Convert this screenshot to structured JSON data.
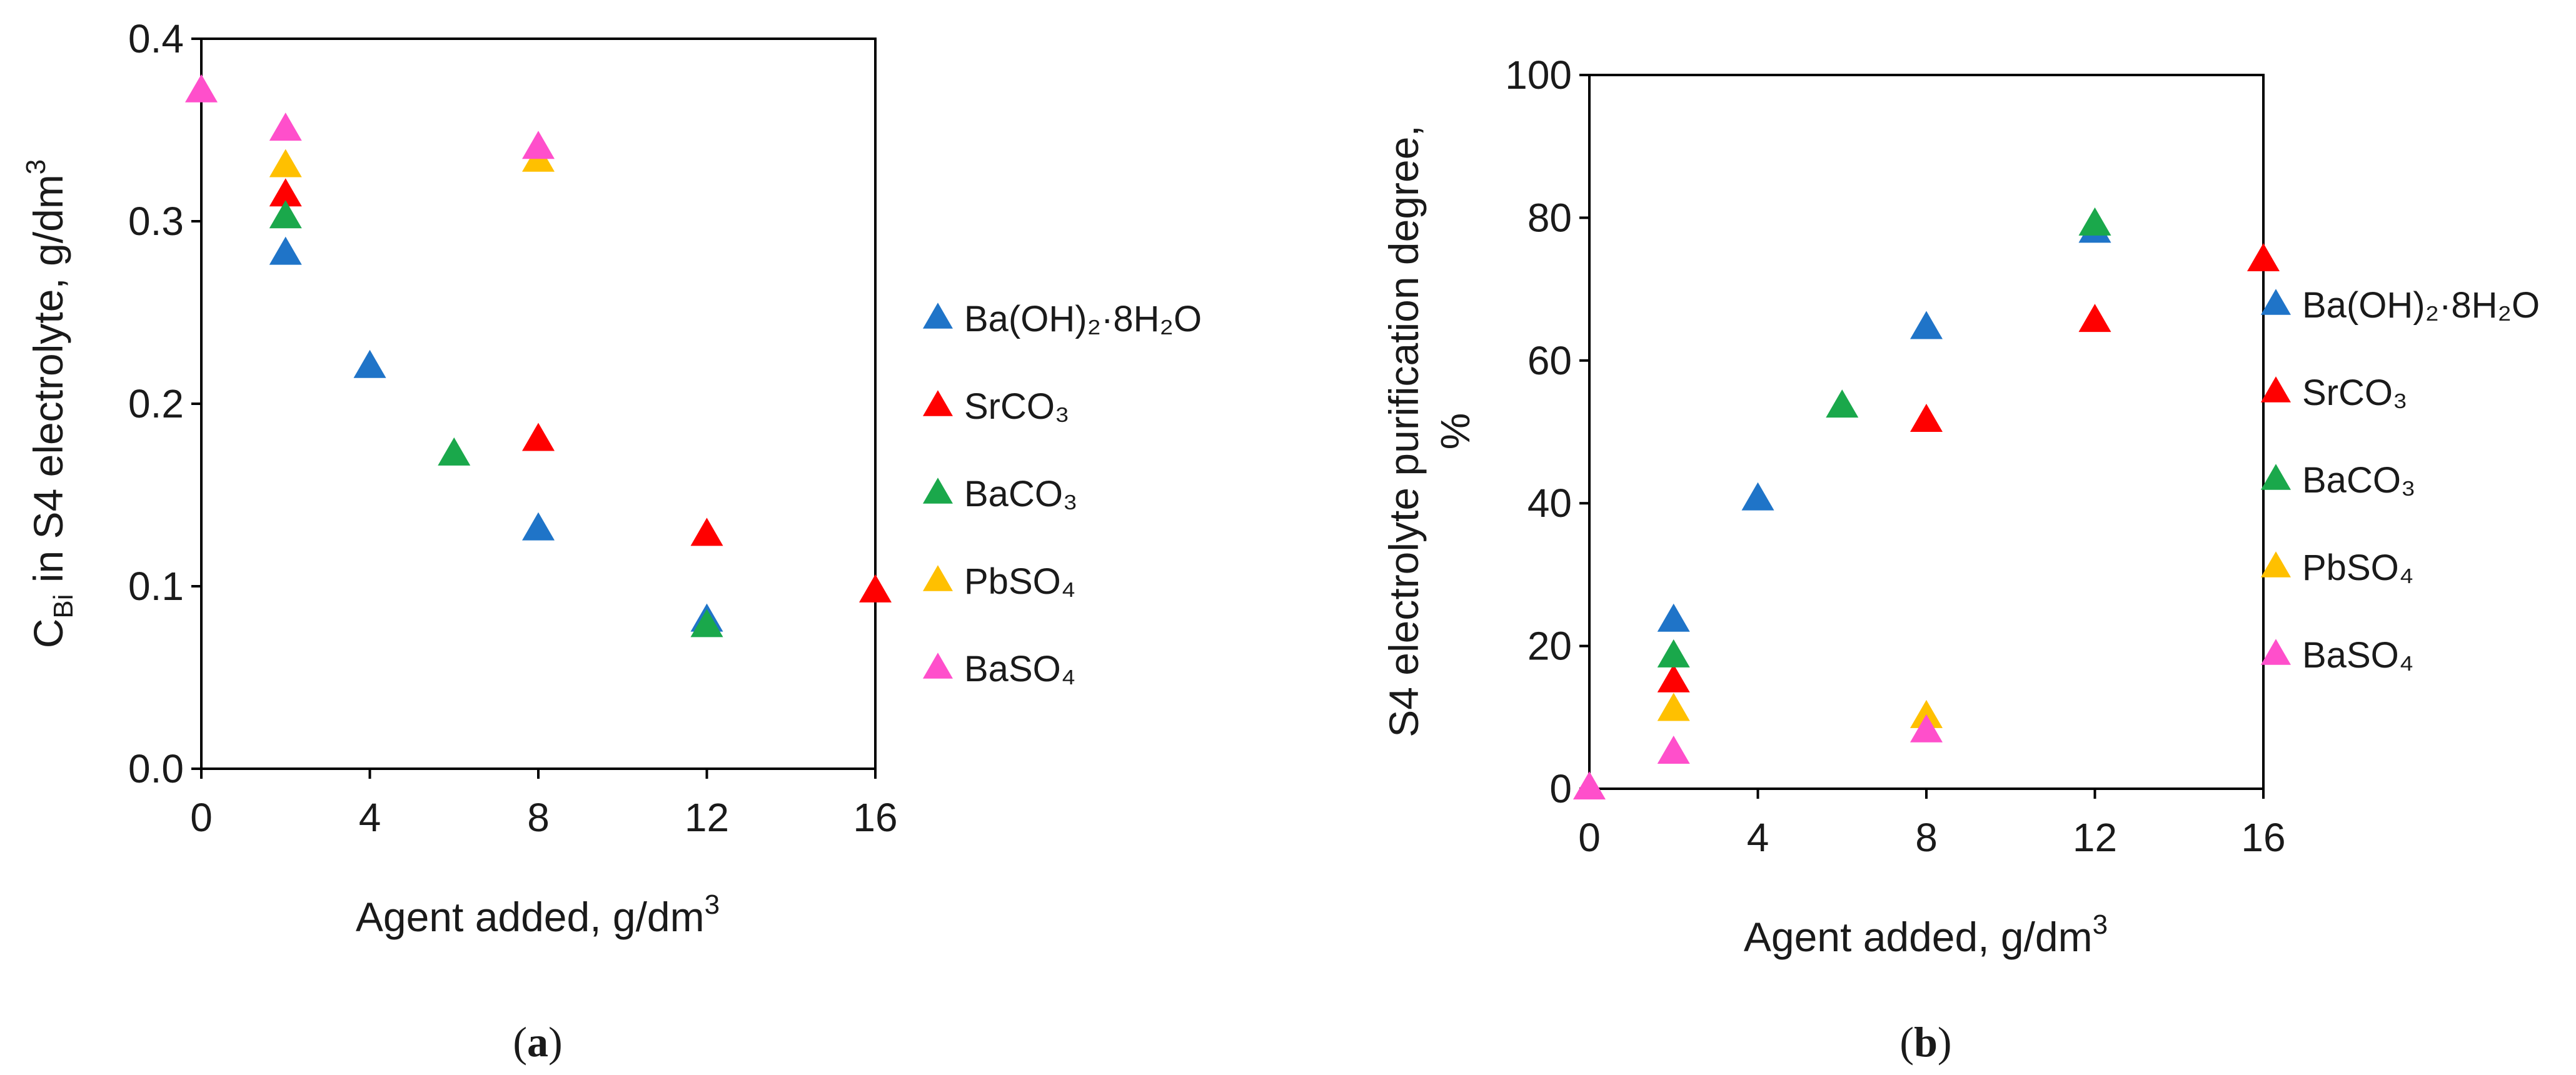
{
  "panels": [
    {
      "caption_letter": "a",
      "xlabel": "Agent added, g/dm",
      "xlabel_sup": "3",
      "ylabel": {
        "c": "C",
        "sub": "Bi",
        "rest": " in S4 electrolyte, g/dm",
        "sup": "3"
      },
      "legend": [
        {
          "name": "Ba(OH)₂·8H₂O",
          "color": "#1f74c8"
        },
        {
          "name": "SrCO₃",
          "color": "#ff0000"
        },
        {
          "name": "BaCO₃",
          "color": "#1aa84b"
        },
        {
          "name": "PbSO₄",
          "color": "#ffc000"
        },
        {
          "name": "BaSO₄",
          "color": "#ff4fcb"
        }
      ]
    },
    {
      "caption_letter": "b",
      "xlabel": "Agent added, g/dm",
      "xlabel_sup": "3",
      "ylabel_line1": "S4 electrolyte purification degree,",
      "ylabel_line2": "%",
      "legend": [
        {
          "name": "Ba(OH)₂·8H₂O",
          "color": "#1f74c8"
        },
        {
          "name": "SrCO₃",
          "color": "#ff0000"
        },
        {
          "name": "BaCO₃",
          "color": "#1aa84b"
        },
        {
          "name": "PbSO₄",
          "color": "#ffc000"
        },
        {
          "name": "BaSO₄",
          "color": "#ff4fcb"
        }
      ]
    }
  ],
  "chart_data": [
    {
      "type": "scatter",
      "title": "",
      "xlabel": "Agent added, g/dm3",
      "ylabel": "CBi in S4 electrolyte, g/dm3",
      "xlim": [
        0,
        16
      ],
      "ylim": [
        0.0,
        0.4
      ],
      "xticks": [
        "0",
        "4",
        "8",
        "12",
        "16"
      ],
      "yticks": [
        "0.0",
        "0.1",
        "0.2",
        "0.3",
        "0.4"
      ],
      "grid": false,
      "legend_position": "right",
      "series": [
        {
          "name": "Ba(OH)₂·8H₂O",
          "color": "#1f74c8",
          "x": [
            2,
            4,
            8,
            12
          ],
          "y": [
            0.282,
            0.22,
            0.131,
            0.081
          ]
        },
        {
          "name": "SrCO₃",
          "color": "#ff0000",
          "x": [
            2,
            8,
            12,
            16
          ],
          "y": [
            0.314,
            0.18,
            0.128,
            0.097
          ]
        },
        {
          "name": "BaCO₃",
          "color": "#1aa84b",
          "x": [
            2,
            6,
            12
          ],
          "y": [
            0.302,
            0.172,
            0.078
          ]
        },
        {
          "name": "PbSO₄",
          "color": "#ffc000",
          "x": [
            2,
            8
          ],
          "y": [
            0.33,
            0.333
          ]
        },
        {
          "name": "BaSO₄",
          "color": "#ff4fcb",
          "x": [
            0,
            2,
            8
          ],
          "y": [
            0.371,
            0.35,
            0.34
          ]
        }
      ]
    },
    {
      "type": "scatter",
      "title": "",
      "xlabel": "Agent added, g/dm3",
      "ylabel": "S4 electrolyte purification degree, %",
      "xlim": [
        0,
        16
      ],
      "ylim": [
        0,
        100
      ],
      "xticks": [
        "0",
        "4",
        "8",
        "12",
        "16"
      ],
      "yticks": [
        "0",
        "20",
        "40",
        "60",
        "80",
        "100"
      ],
      "grid": false,
      "legend_position": "right",
      "series": [
        {
          "name": "Ba(OH)₂·8H₂O",
          "color": "#1f74c8",
          "x": [
            2,
            4,
            8,
            12
          ],
          "y": [
            23.5,
            40.5,
            64.5,
            78
          ]
        },
        {
          "name": "SrCO₃",
          "color": "#ff0000",
          "x": [
            2,
            8,
            12,
            16
          ],
          "y": [
            15,
            51.5,
            65.5,
            74
          ]
        },
        {
          "name": "BaCO₃",
          "color": "#1aa84b",
          "x": [
            2,
            6,
            12
          ],
          "y": [
            18.5,
            53.5,
            79
          ]
        },
        {
          "name": "PbSO₄",
          "color": "#ffc000",
          "x": [
            2,
            8
          ],
          "y": [
            11,
            10
          ]
        },
        {
          "name": "BaSO₄",
          "color": "#ff4fcb",
          "x": [
            0,
            2,
            8
          ],
          "y": [
            0,
            5,
            8
          ]
        }
      ]
    }
  ]
}
